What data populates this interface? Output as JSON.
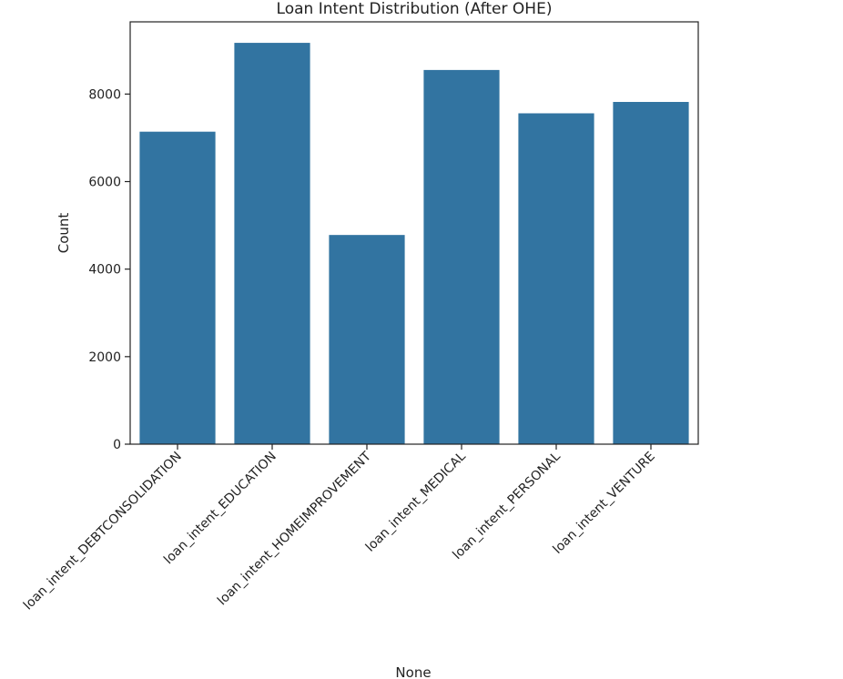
{
  "chart_data": {
    "type": "bar",
    "title": "Loan Intent Distribution (After OHE)",
    "xlabel": "None",
    "ylabel": "Count",
    "categories": [
      "loan_intent_DEBTCONSOLIDATION",
      "loan_intent_EDUCATION",
      "loan_intent_HOMEIMPROVEMENT",
      "loan_intent_MEDICAL",
      "loan_intent_PERSONAL",
      "loan_intent_VENTURE"
    ],
    "values": [
      7140,
      9170,
      4780,
      8550,
      7560,
      7820
    ],
    "ylim": [
      0,
      9650
    ],
    "yticks": [
      0,
      2000,
      4000,
      6000,
      8000
    ],
    "ytick_labels": [
      "0",
      "2000",
      "4000",
      "6000",
      "8000"
    ],
    "grid": false,
    "bar_color": "#3274a1"
  }
}
